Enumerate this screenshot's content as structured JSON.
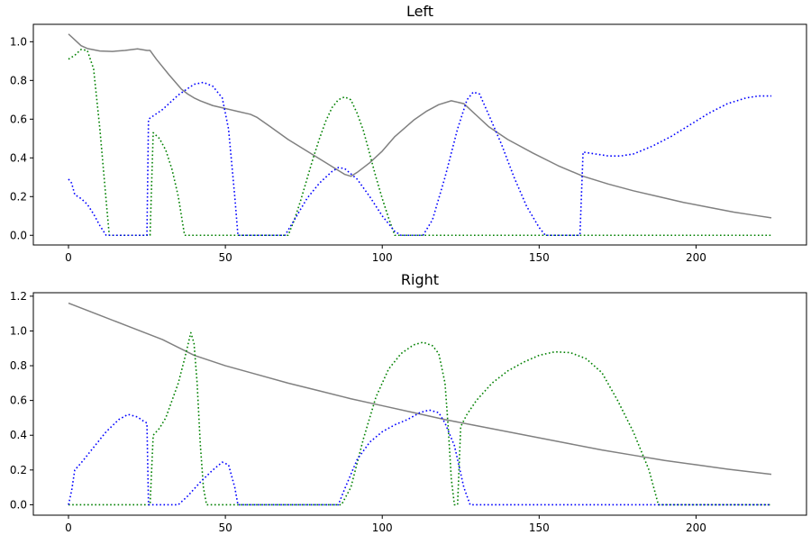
{
  "chart_data": [
    {
      "type": "line",
      "title": "Left",
      "xlabel": "",
      "ylabel": "",
      "xlim": [
        -11.2,
        235.2
      ],
      "ylim": [
        -0.05,
        1.09
      ],
      "xticks": [
        0,
        50,
        100,
        150,
        200
      ],
      "yticks": [
        0.0,
        0.2,
        0.4,
        0.6,
        0.8,
        1.0
      ],
      "grid": false,
      "series": [
        {
          "color": "#808080",
          "style": "solid",
          "points": [
            [
              0,
              1.04
            ],
            [
              2,
              1.01
            ],
            [
              4,
              0.98
            ],
            [
              6,
              0.965
            ],
            [
              10,
              0.952
            ],
            [
              14,
              0.95
            ],
            [
              18,
              0.955
            ],
            [
              22,
              0.963
            ],
            [
              25,
              0.955
            ],
            [
              26,
              0.955
            ],
            [
              28,
              0.91
            ],
            [
              32,
              0.83
            ],
            [
              36,
              0.755
            ],
            [
              38,
              0.73
            ],
            [
              40,
              0.71
            ],
            [
              42,
              0.695
            ],
            [
              46,
              0.67
            ],
            [
              50,
              0.655
            ],
            [
              54,
              0.64
            ],
            [
              58,
              0.625
            ],
            [
              60,
              0.61
            ],
            [
              64,
              0.565
            ],
            [
              70,
              0.495
            ],
            [
              76,
              0.435
            ],
            [
              82,
              0.375
            ],
            [
              86,
              0.335
            ],
            [
              88,
              0.315
            ],
            [
              90,
              0.305
            ],
            [
              92,
              0.325
            ],
            [
              96,
              0.375
            ],
            [
              100,
              0.435
            ],
            [
              104,
              0.51
            ],
            [
              110,
              0.595
            ],
            [
              114,
              0.64
            ],
            [
              118,
              0.675
            ],
            [
              122,
              0.695
            ],
            [
              126,
              0.68
            ],
            [
              130,
              0.62
            ],
            [
              134,
              0.56
            ],
            [
              140,
              0.495
            ],
            [
              148,
              0.425
            ],
            [
              156,
              0.36
            ],
            [
              164,
              0.305
            ],
            [
              172,
              0.265
            ],
            [
              180,
              0.23
            ],
            [
              188,
              0.2
            ],
            [
              196,
              0.17
            ],
            [
              204,
              0.145
            ],
            [
              212,
              0.12
            ],
            [
              218,
              0.105
            ],
            [
              224,
              0.09
            ]
          ]
        },
        {
          "color": "#008000",
          "style": "dotted",
          "points": [
            [
              0,
              0.91
            ],
            [
              2,
              0.93
            ],
            [
              4,
              0.96
            ],
            [
              6,
              0.955
            ],
            [
              8,
              0.86
            ],
            [
              10,
              0.55
            ],
            [
              12,
              0.18
            ],
            [
              13,
              0.0
            ],
            [
              26,
              0.0
            ],
            [
              27,
              0.53
            ],
            [
              29,
              0.5
            ],
            [
              31,
              0.44
            ],
            [
              33,
              0.34
            ],
            [
              35,
              0.2
            ],
            [
              37,
              0.0
            ],
            [
              70,
              0.0
            ],
            [
              72,
              0.08
            ],
            [
              74,
              0.18
            ],
            [
              76,
              0.29
            ],
            [
              78,
              0.4
            ],
            [
              80,
              0.5
            ],
            [
              82,
              0.59
            ],
            [
              84,
              0.66
            ],
            [
              86,
              0.7
            ],
            [
              88,
              0.715
            ],
            [
              90,
              0.7
            ],
            [
              92,
              0.63
            ],
            [
              94,
              0.54
            ],
            [
              96,
              0.42
            ],
            [
              98,
              0.3
            ],
            [
              100,
              0.19
            ],
            [
              102,
              0.09
            ],
            [
              104,
              0.0
            ],
            [
              224,
              0.0
            ]
          ]
        },
        {
          "color": "#0000ff",
          "style": "dotted",
          "points": [
            [
              0,
              0.29
            ],
            [
              1,
              0.27
            ],
            [
              2,
              0.21
            ],
            [
              4,
              0.19
            ],
            [
              6,
              0.16
            ],
            [
              8,
              0.11
            ],
            [
              10,
              0.05
            ],
            [
              12,
              0.0
            ],
            [
              25,
              0.0
            ],
            [
              25.5,
              0.6
            ],
            [
              30,
              0.65
            ],
            [
              35,
              0.725
            ],
            [
              40,
              0.78
            ],
            [
              43,
              0.79
            ],
            [
              46,
              0.77
            ],
            [
              49,
              0.71
            ],
            [
              51,
              0.55
            ],
            [
              53,
              0.2
            ],
            [
              54,
              0.0
            ],
            [
              69,
              0.0
            ],
            [
              72,
              0.08
            ],
            [
              76,
              0.19
            ],
            [
              80,
              0.27
            ],
            [
              84,
              0.33
            ],
            [
              86,
              0.35
            ],
            [
              88,
              0.345
            ],
            [
              92,
              0.29
            ],
            [
              96,
              0.2
            ],
            [
              100,
              0.1
            ],
            [
              104,
              0.02
            ],
            [
              106,
              0.0
            ],
            [
              113,
              0.0
            ],
            [
              116,
              0.08
            ],
            [
              120,
              0.3
            ],
            [
              124,
              0.55
            ],
            [
              127,
              0.7
            ],
            [
              129,
              0.74
            ],
            [
              131,
              0.73
            ],
            [
              134,
              0.62
            ],
            [
              138,
              0.47
            ],
            [
              142,
              0.3
            ],
            [
              146,
              0.15
            ],
            [
              150,
              0.04
            ],
            [
              152,
              0.0
            ],
            [
              163,
              0.0
            ],
            [
              164,
              0.43
            ],
            [
              168,
              0.42
            ],
            [
              172,
              0.41
            ],
            [
              176,
              0.41
            ],
            [
              180,
              0.42
            ],
            [
              186,
              0.46
            ],
            [
              192,
              0.51
            ],
            [
              198,
              0.57
            ],
            [
              204,
              0.63
            ],
            [
              210,
              0.68
            ],
            [
              216,
              0.71
            ],
            [
              220,
              0.72
            ],
            [
              224,
              0.72
            ]
          ]
        }
      ]
    },
    {
      "type": "line",
      "title": "Right",
      "xlabel": "",
      "ylabel": "",
      "xlim": [
        -11.2,
        235.2
      ],
      "ylim": [
        -0.06,
        1.22
      ],
      "xticks": [
        0,
        50,
        100,
        150,
        200
      ],
      "yticks": [
        0.0,
        0.2,
        0.4,
        0.6,
        0.8,
        1.0,
        1.2
      ],
      "grid": false,
      "series": [
        {
          "color": "#808080",
          "style": "solid",
          "points": [
            [
              0,
              1.16
            ],
            [
              10,
              1.09
            ],
            [
              20,
              1.02
            ],
            [
              30,
              0.95
            ],
            [
              40,
              0.86
            ],
            [
              50,
              0.8
            ],
            [
              60,
              0.75
            ],
            [
              70,
              0.7
            ],
            [
              80,
              0.655
            ],
            [
              90,
              0.61
            ],
            [
              100,
              0.57
            ],
            [
              110,
              0.53
            ],
            [
              120,
              0.49
            ],
            [
              130,
              0.455
            ],
            [
              140,
              0.42
            ],
            [
              150,
              0.385
            ],
            [
              160,
              0.35
            ],
            [
              170,
              0.315
            ],
            [
              180,
              0.285
            ],
            [
              190,
              0.255
            ],
            [
              200,
              0.23
            ],
            [
              210,
              0.205
            ],
            [
              224,
              0.175
            ]
          ]
        },
        {
          "color": "#008000",
          "style": "dotted",
          "points": [
            [
              0,
              0.0
            ],
            [
              26,
              0.0
            ],
            [
              27,
              0.4
            ],
            [
              29,
              0.44
            ],
            [
              31,
              0.5
            ],
            [
              33,
              0.6
            ],
            [
              35,
              0.7
            ],
            [
              37,
              0.84
            ],
            [
              39,
              0.99
            ],
            [
              40,
              0.93
            ],
            [
              41,
              0.7
            ],
            [
              42,
              0.35
            ],
            [
              43,
              0.1
            ],
            [
              44,
              0.0
            ],
            [
              87,
              0.0
            ],
            [
              90,
              0.1
            ],
            [
              94,
              0.38
            ],
            [
              98,
              0.62
            ],
            [
              102,
              0.78
            ],
            [
              106,
              0.87
            ],
            [
              110,
              0.92
            ],
            [
              113,
              0.935
            ],
            [
              116,
              0.915
            ],
            [
              118,
              0.87
            ],
            [
              120,
              0.7
            ],
            [
              121,
              0.45
            ],
            [
              122,
              0.15
            ],
            [
              123,
              0.0
            ],
            [
              124,
              0.0
            ],
            [
              125,
              0.45
            ],
            [
              127,
              0.52
            ],
            [
              130,
              0.6
            ],
            [
              135,
              0.7
            ],
            [
              140,
              0.77
            ],
            [
              145,
              0.82
            ],
            [
              150,
              0.86
            ],
            [
              155,
              0.88
            ],
            [
              160,
              0.875
            ],
            [
              165,
              0.84
            ],
            [
              170,
              0.76
            ],
            [
              175,
              0.6
            ],
            [
              180,
              0.42
            ],
            [
              185,
              0.2
            ],
            [
              188,
              0.0
            ],
            [
              224,
              0.0
            ]
          ]
        },
        {
          "color": "#0000ff",
          "style": "dotted",
          "points": [
            [
              0,
              0.0
            ],
            [
              1,
              0.08
            ],
            [
              2,
              0.2
            ],
            [
              4,
              0.24
            ],
            [
              8,
              0.33
            ],
            [
              12,
              0.42
            ],
            [
              16,
              0.49
            ],
            [
              19,
              0.52
            ],
            [
              22,
              0.505
            ],
            [
              24,
              0.48
            ],
            [
              25,
              0.47
            ],
            [
              25.5,
              0.0
            ],
            [
              35,
              0.0
            ],
            [
              38,
              0.05
            ],
            [
              42,
              0.13
            ],
            [
              46,
              0.2
            ],
            [
              49,
              0.245
            ],
            [
              51,
              0.23
            ],
            [
              53,
              0.1
            ],
            [
              54,
              0.0
            ],
            [
              86,
              0.0
            ],
            [
              88,
              0.09
            ],
            [
              92,
              0.26
            ],
            [
              96,
              0.36
            ],
            [
              100,
              0.42
            ],
            [
              104,
              0.46
            ],
            [
              108,
              0.49
            ],
            [
              112,
              0.53
            ],
            [
              115,
              0.545
            ],
            [
              118,
              0.53
            ],
            [
              120,
              0.47
            ],
            [
              123,
              0.34
            ],
            [
              126,
              0.1
            ],
            [
              128,
              0.0
            ],
            [
              224,
              0.0
            ]
          ]
        }
      ]
    }
  ]
}
